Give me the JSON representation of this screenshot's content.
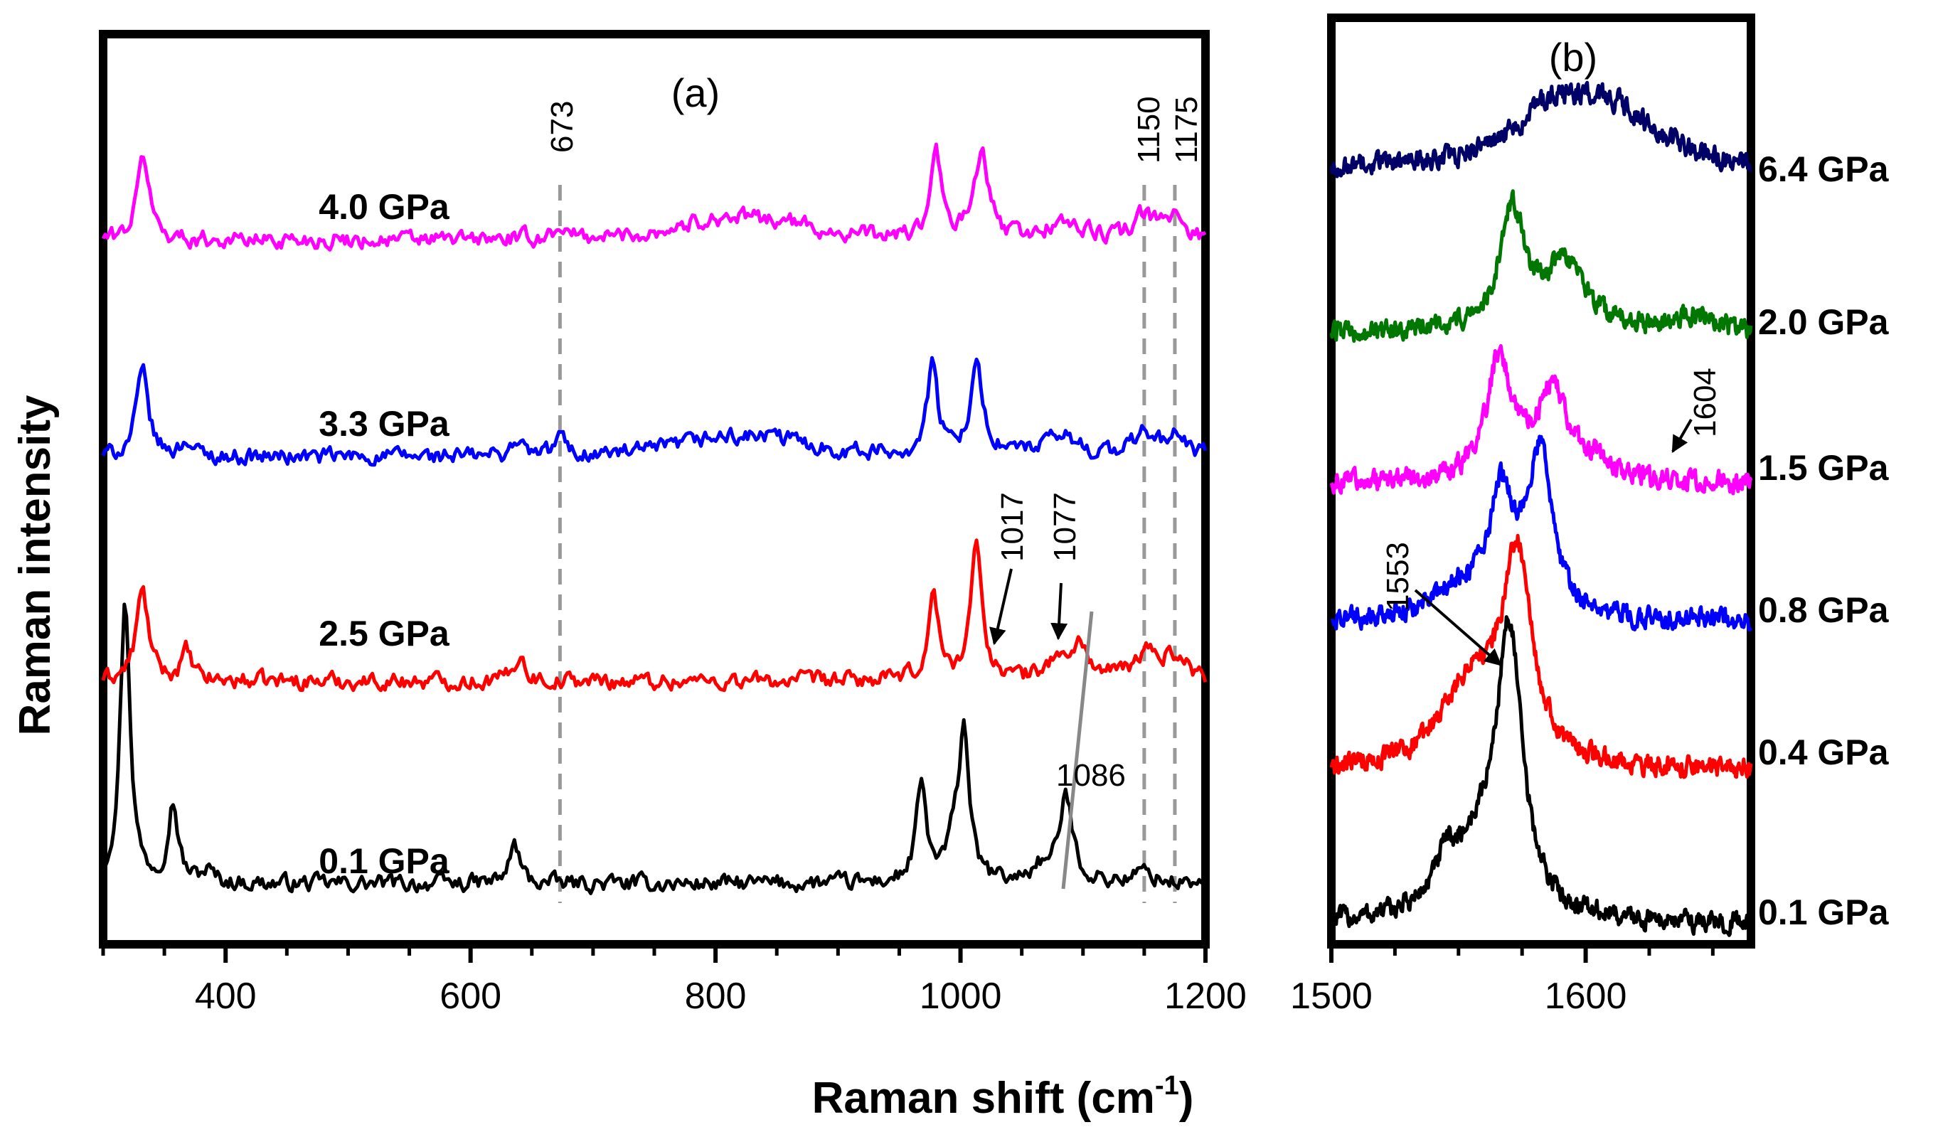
{
  "y_axis_label": "Raman intensity",
  "x_axis_label": "Raman shift (cm",
  "x_axis_label_sup": "-1",
  "x_axis_label_end": ")",
  "chart_data": [
    {
      "panel": "(a)",
      "type": "line",
      "xlim": [
        300,
        1200
      ],
      "xticks": [
        400,
        600,
        800,
        1000,
        1200
      ],
      "xtick_labels": [
        "400",
        "600",
        "800",
        "1000",
        "1200"
      ],
      "xlabel": "Raman shift (cm-1)",
      "ylabel": "Raman intensity",
      "series": [
        {
          "name": "0.1 GPa",
          "color": "#000000",
          "offset": 0,
          "peaks": [
            [
              318,
              1.0,
              5
            ],
            [
              357,
              0.28,
              5
            ],
            [
              385,
              0.04,
              6
            ],
            [
              636,
              0.14,
              5
            ],
            [
              968,
              0.34,
              5
            ],
            [
              995,
              0.12,
              7
            ],
            [
              1003,
              0.52,
              5
            ],
            [
              1064,
              0.05,
              8
            ],
            [
              1086,
              0.3,
              7
            ],
            [
              1150,
              0.04,
              10
            ]
          ]
        },
        {
          "name": "2.5 GPa",
          "color": "#ff0000",
          "offset": 1,
          "peaks": [
            [
              332,
              0.32,
              6
            ],
            [
              368,
              0.1,
              5
            ],
            [
              640,
              0.1,
              5
            ],
            [
              978,
              0.3,
              5
            ],
            [
              1013,
              0.46,
              6
            ],
            [
              1077,
              0.06,
              10
            ],
            [
              1097,
              0.12,
              9
            ],
            [
              1152,
              0.09,
              12
            ],
            [
              1175,
              0.08,
              12
            ]
          ]
        },
        {
          "name": "3.3 GPa",
          "color": "#0000ff",
          "offset": 2,
          "peaks": [
            [
              332,
              0.3,
              6
            ],
            [
              368,
              0.06,
              5
            ],
            [
              638,
              0.06,
              5
            ],
            [
              673,
              0.07,
              5
            ],
            [
              800,
              0.05,
              40
            ],
            [
              850,
              0.05,
              40
            ],
            [
              977,
              0.32,
              5
            ],
            [
              1013,
              0.3,
              7
            ],
            [
              1083,
              0.07,
              16
            ],
            [
              1150,
              0.08,
              10
            ],
            [
              1175,
              0.07,
              10
            ]
          ]
        },
        {
          "name": "4.0 GPa",
          "color": "#ff00ff",
          "offset": 3,
          "peaks": [
            [
              333,
              0.3,
              6
            ],
            [
              673,
              0.05,
              5
            ],
            [
              800,
              0.06,
              40
            ],
            [
              850,
              0.05,
              40
            ],
            [
              980,
              0.3,
              5
            ],
            [
              1017,
              0.3,
              7
            ],
            [
              1085,
              0.06,
              16
            ],
            [
              1150,
              0.08,
              10
            ],
            [
              1175,
              0.08,
              10
            ]
          ]
        }
      ],
      "dashed_lines": [
        673,
        1150,
        1175
      ],
      "annotations": [
        "673",
        "1150",
        "1175",
        "1017",
        "1077",
        "1086"
      ]
    },
    {
      "panel": "(b)",
      "type": "line",
      "xlim": [
        1500,
        1665
      ],
      "xticks": [
        1500,
        1600
      ],
      "xtick_labels": [
        "1500",
        "1600"
      ],
      "series": [
        {
          "name": "0.1 GPa",
          "color": "#000000",
          "offset": 0,
          "peaks": [
            [
              1545,
              0.1,
              5
            ],
            [
              1570,
              0.8,
              6
            ],
            [
              1558,
              0.2,
              14
            ]
          ]
        },
        {
          "name": "0.4 GPa",
          "color": "#ff0000",
          "offset": 1,
          "peaks": [
            [
              1573,
              0.6,
              7
            ],
            [
              1555,
              0.25,
              14
            ]
          ]
        },
        {
          "name": "0.8 GPa",
          "color": "#0000ff",
          "offset": 2,
          "peaks": [
            [
              1567,
              0.35,
              6
            ],
            [
              1582,
              0.48,
              6
            ],
            [
              1550,
              0.08,
              12
            ]
          ]
        },
        {
          "name": "1.5 GPa",
          "color": "#ff00ff",
          "offset": 3,
          "peaks": [
            [
              1566,
              0.36,
              6
            ],
            [
              1587,
              0.27,
              8
            ],
            [
              1604,
              0.04,
              6
            ]
          ]
        },
        {
          "name": "2.0 GPa",
          "color": "#007700",
          "offset": 4,
          "peaks": [
            [
              1571,
              0.36,
              6
            ],
            [
              1592,
              0.2,
              10
            ],
            [
              1642,
              0.05,
              10
            ]
          ]
        },
        {
          "name": "6.4 GPa",
          "color": "#000066",
          "offset": 5,
          "peaks": [
            [
              1588,
              0.17,
              20
            ],
            [
              1612,
              0.14,
              20
            ]
          ]
        }
      ],
      "annotations": [
        "1553",
        "1604"
      ]
    }
  ]
}
